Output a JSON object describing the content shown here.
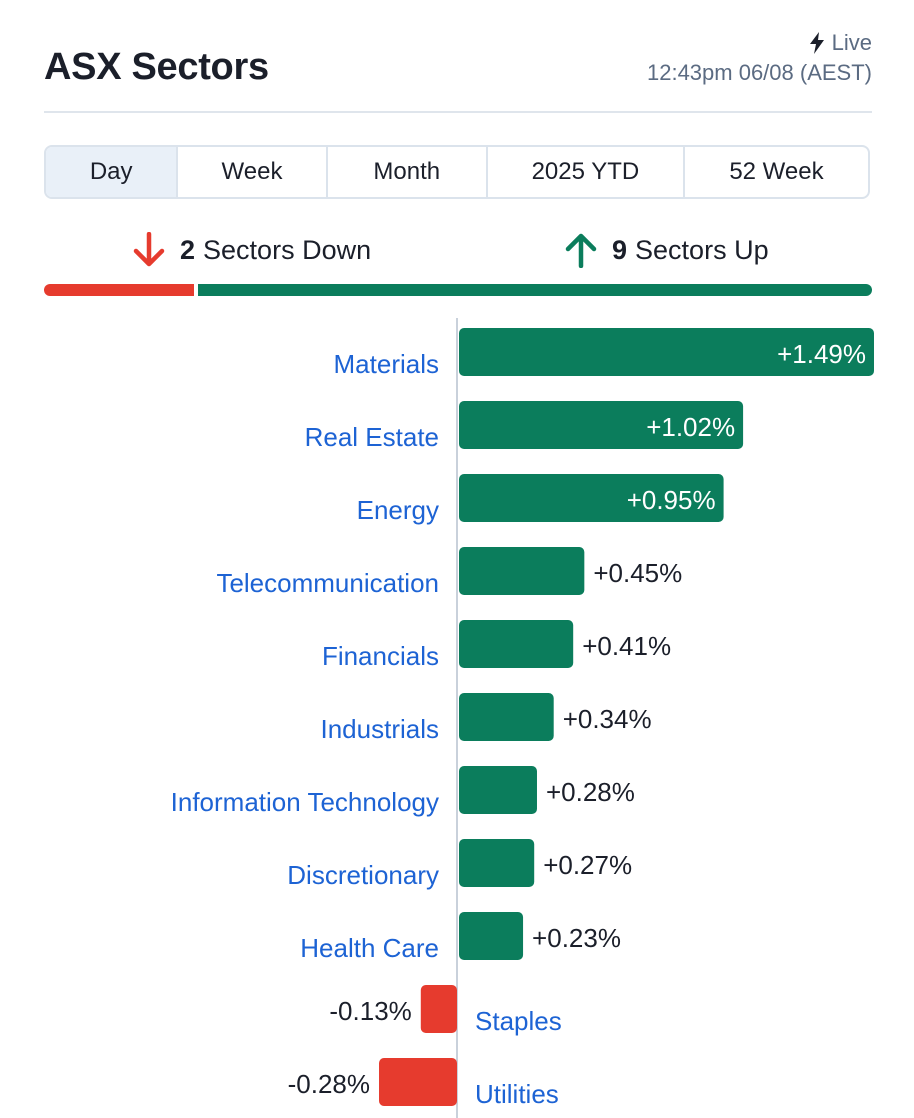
{
  "header": {
    "title": "ASX Sectors",
    "live_label": "Live",
    "timestamp": "12:43pm 06/08 (AEST)"
  },
  "tabs": [
    {
      "label": "Day",
      "active": true
    },
    {
      "label": "Week",
      "active": false
    },
    {
      "label": "Month",
      "active": false
    },
    {
      "label": "2025 YTD",
      "active": false
    },
    {
      "label": "52 Week",
      "active": false
    }
  ],
  "summary": {
    "down_count": "2",
    "down_label": "Sectors Down",
    "up_count": "9",
    "up_label": "Sectors Up"
  },
  "colors": {
    "up": "#0b7d5c",
    "down": "#e63b2e",
    "label": "#1d63d4"
  },
  "icons": {
    "live": "lightning-bolt-icon",
    "down": "arrow-down-icon",
    "up": "arrow-up-icon"
  },
  "chart_data": {
    "type": "bar",
    "orientation": "horizontal",
    "categories": [
      "Materials",
      "Real Estate",
      "Energy",
      "Telecommunication",
      "Financials",
      "Industrials",
      "Information Technology",
      "Discretionary",
      "Health Care",
      "Staples",
      "Utilities"
    ],
    "values": [
      1.49,
      1.02,
      0.95,
      0.45,
      0.41,
      0.34,
      0.28,
      0.27,
      0.23,
      -0.13,
      -0.28
    ],
    "value_labels": [
      "+1.49%",
      "+1.02%",
      "+0.95%",
      "+0.45%",
      "+0.41%",
      "+0.34%",
      "+0.28%",
      "+0.27%",
      "+0.23%",
      "-0.13%",
      "-0.28%"
    ],
    "unit": "%"
  }
}
